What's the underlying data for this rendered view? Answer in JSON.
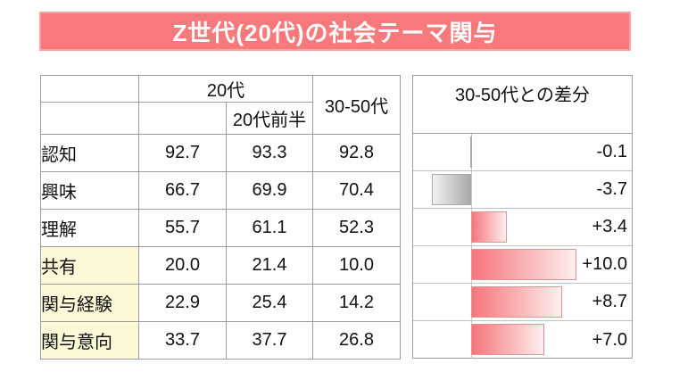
{
  "title": "Z世代(20代)の社会テーマ関与",
  "table": {
    "header": {
      "group_20s": "20代",
      "sub_20s_early": "20代前半",
      "col_30_50s": "30-50代"
    },
    "rows": [
      {
        "label": "認知",
        "values": [
          "92.7",
          "93.3",
          "92.8"
        ],
        "highlight": false
      },
      {
        "label": "興味",
        "values": [
          "66.7",
          "69.9",
          "70.4"
        ],
        "highlight": false
      },
      {
        "label": "理解",
        "values": [
          "55.7",
          "61.1",
          "52.3"
        ],
        "highlight": false
      },
      {
        "label": "共有",
        "values": [
          "20.0",
          "21.4",
          "10.0"
        ],
        "highlight": true
      },
      {
        "label": "関与経験",
        "values": [
          "22.9",
          "25.4",
          "14.2"
        ],
        "highlight": true
      },
      {
        "label": "関与意向",
        "values": [
          "33.7",
          "37.7",
          "26.8"
        ],
        "highlight": true
      }
    ]
  },
  "diff_panel": {
    "header": "30-50代との差分",
    "value_labels": [
      "-0.1",
      "-3.7",
      "+3.4",
      "+10.0",
      "+8.7",
      "+7.0"
    ]
  },
  "chart_data": {
    "type": "bar",
    "orientation": "horizontal",
    "title": "30-50代との差分",
    "categories": [
      "認知",
      "興味",
      "理解",
      "共有",
      "関与経験",
      "関与意向"
    ],
    "values": [
      -0.1,
      -3.7,
      3.4,
      10.0,
      8.7,
      7.0
    ],
    "xlim": [
      -5.5,
      15.3
    ],
    "grid": false,
    "legend": "none",
    "value_labels_position": "right-aligned",
    "positive_color": "#f4767c",
    "negative_color": "#ababab",
    "bar_fill_style": "gradient fading away from zero axis"
  },
  "colors": {
    "banner_bg": "#f8797c",
    "banner_text": "#ffffff",
    "highlight_cell_bg": "#fdf8d7",
    "highlight_border": "#ee7a7a",
    "table_border": "#9c9c9c",
    "axis_line": "#c6c6c6",
    "bar_positive": "#f4767c",
    "bar_negative": "#ababab"
  }
}
